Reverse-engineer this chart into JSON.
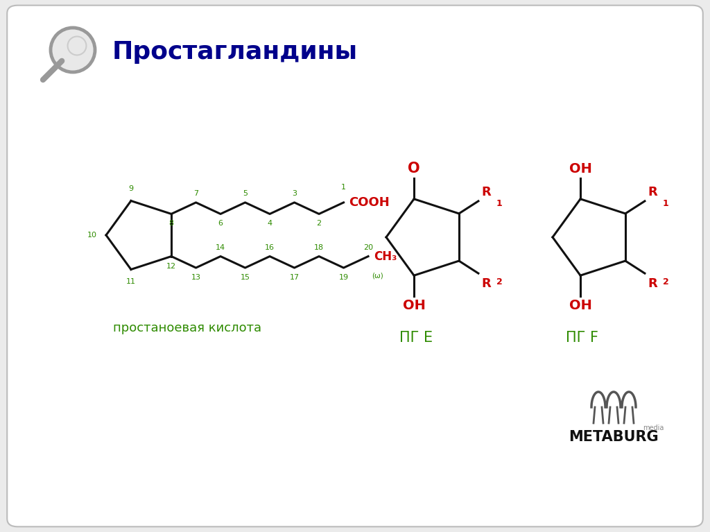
{
  "title": "Простагландины",
  "title_color": "#00008B",
  "bg_color": "#EBEBEB",
  "card_color": "#FFFFFF",
  "green_color": "#2E8B00",
  "red_color": "#CC0000",
  "black_color": "#111111",
  "label1": "простаноевая кислота",
  "label2": "ПГ Е",
  "label3": "ПГ F"
}
